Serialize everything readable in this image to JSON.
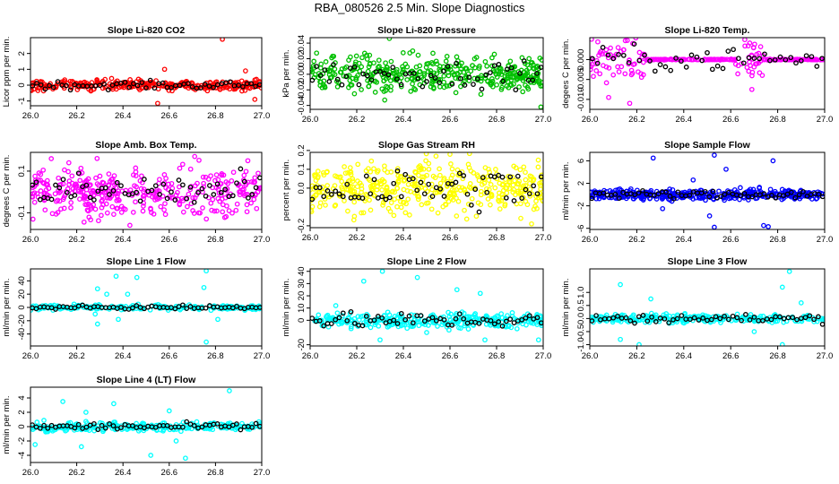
{
  "title": "RBA_080526  2.5 Min. Slope Diagnostics",
  "colors": {
    "red": "#ff0000",
    "green": "#00c000",
    "magenta": "#ff00ff",
    "yellow": "#ffff00",
    "blue": "#0000ff",
    "cyan": "#00ffff",
    "black": "#000000"
  },
  "chart_data": [
    {
      "type": "scatter",
      "title": "Slope Li-820 CO2",
      "ylabel": "Licor ppm per min.",
      "xlim": [
        26.0,
        27.0
      ],
      "ylim": [
        -1.3,
        3.0
      ],
      "yticks": [
        -1,
        0,
        1,
        2
      ],
      "yticklabels": [
        "-1",
        "0",
        "1",
        "2"
      ],
      "xticks": [
        26.0,
        26.2,
        26.4,
        26.6,
        26.8,
        27.0
      ],
      "xticklabels": [
        "26.0",
        "26.2",
        "26.4",
        "26.6",
        "26.8",
        "27.0"
      ],
      "color": "red",
      "n_color": 300,
      "n_black": 55,
      "spread": 0.16,
      "spread_black": 0.12,
      "outliers": [
        [
          26.58,
          1.0
        ],
        [
          26.83,
          2.9
        ],
        [
          26.55,
          -1.15
        ],
        [
          26.97,
          -0.9
        ],
        [
          26.93,
          0.9
        ]
      ]
    },
    {
      "type": "scatter",
      "title": "Slope Li-820 Pressure",
      "ylabel": "kPa per min.",
      "xlim": [
        26.0,
        27.0
      ],
      "ylim": [
        -0.045,
        0.047
      ],
      "yticks": [
        -0.04,
        -0.02,
        0.0,
        0.02,
        0.04
      ],
      "yticklabels": [
        "-0.04",
        "-0.02",
        "0.00",
        "0.02",
        "0.04"
      ],
      "xticks": [
        26.0,
        26.2,
        26.4,
        26.6,
        26.8,
        27.0
      ],
      "xticklabels": [
        "26.0",
        "26.2",
        "26.4",
        "26.6",
        "26.8",
        "27.0"
      ],
      "color": "green",
      "n_color": 400,
      "n_black": 55,
      "spread": 0.011,
      "spread_black": 0.008,
      "outliers": [
        [
          26.34,
          0.046
        ],
        [
          26.32,
          -0.033
        ],
        [
          26.99,
          -0.042
        ],
        [
          26.44,
          0.03
        ],
        [
          26.19,
          -0.025
        ]
      ]
    },
    {
      "type": "scatter",
      "title": "Slope Li-820 Temp.",
      "ylabel": "degees C per min.",
      "xlim": [
        26.0,
        27.0
      ],
      "ylim": [
        -0.0125,
        0.0055
      ],
      "yticks": [
        -0.01,
        -0.005,
        0.0
      ],
      "yticklabels": [
        "-0.010",
        "-0.005",
        "0.000"
      ],
      "xticks": [
        26.0,
        26.2,
        26.4,
        26.6,
        26.8,
        27.0
      ],
      "xticklabels": [
        "26.0",
        "26.2",
        "26.4",
        "26.6",
        "26.8",
        "27.0"
      ],
      "color": "magenta",
      "n_color": 260,
      "n_black": 45,
      "spread": 0.0028,
      "spread_black": 0.0015,
      "bursts": [
        [
          26.0,
          26.24
        ],
        [
          26.62,
          26.74
        ]
      ],
      "outliers": [
        [
          26.16,
          0.0048
        ],
        [
          26.17,
          -0.011
        ],
        [
          26.66,
          0.005
        ],
        [
          26.69,
          -0.0075
        ],
        [
          26.08,
          -0.0095
        ]
      ]
    },
    {
      "type": "scatter",
      "title": "Slope Amb. Box Temp.",
      "ylabel": "degrees C per min.",
      "xlim": [
        26.0,
        27.0
      ],
      "ylim": [
        -0.18,
        0.19
      ],
      "yticks": [
        -0.1,
        0.1
      ],
      "yticklabels": [
        "-0.1",
        "0.1"
      ],
      "xticks": [
        26.0,
        26.2,
        26.4,
        26.6,
        26.8,
        27.0
      ],
      "xticklabels": [
        "26.0",
        "26.2",
        "26.4",
        "26.6",
        "26.8",
        "27.0"
      ],
      "color": "magenta",
      "n_color": 360,
      "n_black": 60,
      "spread": 0.055,
      "spread_black": 0.045,
      "outliers": [
        [
          26.71,
          0.17
        ],
        [
          26.09,
          0.16
        ],
        [
          26.43,
          -0.16
        ],
        [
          26.94,
          0.15
        ]
      ]
    },
    {
      "type": "scatter",
      "title": "Slope Gas Stream RH",
      "ylabel": "percent per min.",
      "xlim": [
        26.0,
        27.0
      ],
      "ylim": [
        -0.21,
        0.19
      ],
      "yticks": [
        -0.2,
        0.0,
        0.1,
        0.2
      ],
      "yticklabels": [
        "-0.2",
        "0.0",
        "0.1",
        "0.2"
      ],
      "xticks": [
        26.0,
        26.2,
        26.4,
        26.6,
        26.8,
        27.0
      ],
      "xticklabels": [
        "26.0",
        "26.2",
        "26.4",
        "26.6",
        "26.8",
        "27.0"
      ],
      "color": "yellow",
      "n_color": 420,
      "n_black": 60,
      "spread": 0.065,
      "spread_black": 0.06,
      "outliers": [
        [
          26.54,
          0.17
        ],
        [
          26.95,
          -0.19
        ],
        [
          26.19,
          -0.15
        ],
        [
          26.6,
          0.18
        ]
      ]
    },
    {
      "type": "scatter",
      "title": "Slope Sample Flow",
      "ylabel": "ml/min per min.",
      "xlim": [
        26.0,
        27.0
      ],
      "ylim": [
        -6.2,
        7.5
      ],
      "yticks": [
        -6,
        -2,
        2,
        6
      ],
      "yticklabels": [
        "-6",
        "-2",
        "2",
        "6"
      ],
      "xticks": [
        26.0,
        26.2,
        26.4,
        26.6,
        26.8,
        27.0
      ],
      "xticklabels": [
        "26.0",
        "26.2",
        "26.4",
        "26.6",
        "26.8",
        "27.0"
      ],
      "color": "blue",
      "n_color": 380,
      "n_black": 60,
      "spread": 0.45,
      "spread_black": 0.35,
      "outliers": [
        [
          26.27,
          6.5
        ],
        [
          26.53,
          7.0
        ],
        [
          26.53,
          -5.8
        ],
        [
          26.76,
          -5.7
        ],
        [
          26.78,
          6.0
        ],
        [
          26.58,
          4.5
        ],
        [
          26.31,
          -2.5
        ],
        [
          26.51,
          -3.8
        ],
        [
          26.74,
          -5.5
        ],
        [
          26.44,
          2.6
        ]
      ]
    },
    {
      "type": "scatter",
      "title": "Slope Line 1 Flow",
      "ylabel": "ml/min per min.",
      "xlim": [
        26.0,
        27.0
      ],
      "ylim": [
        -58,
        58
      ],
      "yticks": [
        -40,
        -20,
        0,
        20,
        40
      ],
      "yticklabels": [
        "-40",
        "-20",
        "0",
        "20",
        "40"
      ],
      "xticks": [
        26.0,
        26.2,
        26.4,
        26.6,
        26.8,
        27.0
      ],
      "xticklabels": [
        "26.0",
        "26.2",
        "26.4",
        "26.6",
        "26.8",
        "27.0"
      ],
      "color": "cyan",
      "n_color": 200,
      "n_black": 60,
      "spread": 2.0,
      "spread_black": 1.2,
      "outliers": [
        [
          26.76,
          55
        ],
        [
          26.29,
          -25
        ],
        [
          26.37,
          47
        ],
        [
          26.76,
          -52
        ],
        [
          26.29,
          28
        ],
        [
          26.42,
          20
        ],
        [
          26.33,
          20
        ],
        [
          26.38,
          -18
        ],
        [
          26.46,
          45
        ],
        [
          26.75,
          30
        ],
        [
          26.81,
          -18
        ],
        [
          26.28,
          -10
        ]
      ]
    },
    {
      "type": "scatter",
      "title": "Slope Line 2 Flow",
      "ylabel": "ml/min per min.",
      "xlim": [
        26.0,
        27.0
      ],
      "ylim": [
        -21,
        42
      ],
      "yticks": [
        -20,
        0,
        10,
        20,
        30,
        40
      ],
      "yticklabels": [
        "-20",
        "0",
        "10",
        "20",
        "30",
        "40"
      ],
      "xticks": [
        26.0,
        26.2,
        26.4,
        26.6,
        26.8,
        27.0
      ],
      "xticklabels": [
        "26.0",
        "26.2",
        "26.4",
        "26.6",
        "26.8",
        "27.0"
      ],
      "color": "cyan",
      "n_color": 300,
      "n_black": 60,
      "spread": 3.0,
      "spread_black": 3.0,
      "outliers": [
        [
          26.31,
          40
        ],
        [
          26.46,
          35
        ],
        [
          26.23,
          32
        ],
        [
          26.63,
          25
        ],
        [
          26.73,
          22
        ],
        [
          26.3,
          -16
        ],
        [
          26.75,
          -16
        ],
        [
          26.98,
          -16
        ],
        [
          26.5,
          -10
        ],
        [
          26.11,
          12
        ]
      ]
    },
    {
      "type": "scatter",
      "title": "Slope Line 3 Flow",
      "ylabel": "ml/min per min.",
      "xlim": [
        26.0,
        27.0
      ],
      "ylim": [
        -1.05,
        1.9
      ],
      "yticks": [
        -1.0,
        -0.5,
        0.0,
        0.5,
        1.0
      ],
      "yticklabels": [
        "-1.0",
        "-0.5",
        "0.0",
        "0.5",
        "1.0"
      ],
      "xticks": [
        26.0,
        26.2,
        26.4,
        26.6,
        26.8,
        27.0
      ],
      "xticklabels": [
        "26.0",
        "26.2",
        "26.4",
        "26.6",
        "26.8",
        "27.0"
      ],
      "color": "cyan",
      "n_color": 260,
      "n_black": 55,
      "spread": 0.08,
      "spread_black": 0.08,
      "outliers": [
        [
          26.85,
          1.8
        ],
        [
          26.13,
          1.3
        ],
        [
          26.82,
          1.2
        ],
        [
          26.82,
          -1.0
        ],
        [
          26.21,
          -1.0
        ],
        [
          26.13,
          -0.8
        ],
        [
          26.26,
          0.75
        ],
        [
          26.9,
          0.6
        ],
        [
          26.7,
          -0.5
        ]
      ]
    },
    {
      "type": "scatter",
      "title": "Slope Line 4 (LT) Flow",
      "ylabel": "ml/min per min.",
      "xlim": [
        26.0,
        27.0
      ],
      "ylim": [
        -5.0,
        5.5
      ],
      "yticks": [
        -4,
        -2,
        0,
        2,
        4
      ],
      "yticklabels": [
        "-4",
        "-2",
        "0",
        "2",
        "4"
      ],
      "xticks": [
        26.0,
        26.2,
        26.4,
        26.6,
        26.8,
        27.0
      ],
      "xticklabels": [
        "26.0",
        "26.2",
        "26.4",
        "26.6",
        "26.8",
        "27.0"
      ],
      "color": "cyan",
      "n_color": 260,
      "n_black": 60,
      "spread": 0.3,
      "spread_black": 0.25,
      "outliers": [
        [
          26.86,
          5.0
        ],
        [
          26.14,
          3.5
        ],
        [
          26.36,
          3.2
        ],
        [
          26.22,
          -2.8
        ],
        [
          26.67,
          -4.4
        ],
        [
          26.52,
          -4.0
        ],
        [
          26.63,
          -2.0
        ],
        [
          26.6,
          2.2
        ],
        [
          26.24,
          2.0
        ],
        [
          26.02,
          -2.5
        ]
      ]
    }
  ]
}
